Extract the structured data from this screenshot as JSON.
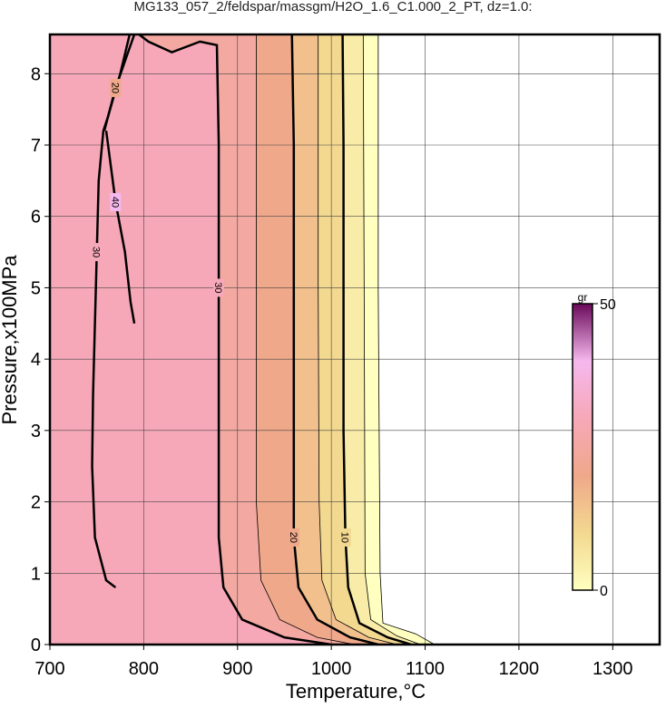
{
  "chart_data": {
    "type": "contour",
    "title": "MG133_057_2/feldspar/massgm/H2O_1.6_C1.000_2_PT, dz=1.0:",
    "x_label": "Temperature,°C",
    "y_label": "Pressure,x100MPa",
    "xlim": [
      700,
      1350
    ],
    "ylim": [
      0,
      8.55
    ],
    "xticks": [
      700,
      800,
      900,
      1000,
      1100,
      1200,
      1300
    ],
    "yticks": [
      0,
      1,
      2,
      3,
      4,
      5,
      6,
      7,
      8
    ],
    "grid": true,
    "colorbar": {
      "label": "gr",
      "clim": [
        0,
        50
      ],
      "ticks": [
        0,
        50
      ]
    },
    "colormap": [
      {
        "value": 0,
        "color": "#ffffc0"
      },
      {
        "value": 10,
        "color": "#f3d890"
      },
      {
        "value": 20,
        "color": "#efa88a"
      },
      {
        "value": 30,
        "color": "#f7a8b8"
      },
      {
        "value": 40,
        "color": "#f5b8ee"
      },
      {
        "value": 50,
        "color": "#6a0a5a"
      }
    ],
    "contours": [
      {
        "level": 0,
        "labeled": false,
        "x": [
          1110,
          1090,
          1055,
          1052,
          1050,
          1050
        ],
        "y": [
          0,
          0.15,
          0.3,
          1,
          5,
          8.55
        ]
      },
      {
        "level": 5,
        "labeled": false,
        "x": [
          1095,
          1070,
          1042,
          1036,
          1035,
          1034
        ],
        "y": [
          0,
          0.12,
          0.35,
          1,
          5,
          8.55
        ]
      },
      {
        "level": 10,
        "labeled": true,
        "x": [
          1085,
          1060,
          1030,
          1018,
          1015,
          1013,
          1013,
          1013,
          1012
        ],
        "y": [
          0,
          0.1,
          0.3,
          0.8,
          1.5,
          3,
          5,
          7,
          8.55
        ]
      },
      {
        "level": 15,
        "labeled": false,
        "x": [
          1070,
          1040,
          1005,
          990,
          987,
          986,
          986
        ],
        "y": [
          0,
          0.1,
          0.35,
          0.9,
          2,
          5,
          8.55
        ]
      },
      {
        "level": 20,
        "labeled": true,
        "x": [
          1050,
          1020,
          985,
          965,
          960,
          960,
          960,
          960,
          958
        ],
        "y": [
          0,
          0.1,
          0.35,
          0.8,
          1.5,
          3,
          5,
          7,
          8.55
        ]
      },
      {
        "level": 25,
        "labeled": false,
        "x": [
          1025,
          985,
          945,
          925,
          920,
          920,
          920
        ],
        "y": [
          0,
          0.1,
          0.35,
          0.9,
          2,
          5,
          8.55
        ]
      },
      {
        "level": 30,
        "labeled": true,
        "x": [
          1000,
          950,
          905,
          885,
          880,
          880,
          880,
          880,
          878,
          860,
          830,
          805,
          795
        ],
        "y": [
          0,
          0.1,
          0.35,
          0.8,
          1.5,
          3,
          5,
          7,
          8.4,
          8.45,
          8.3,
          8.45,
          8.55
        ]
      },
      {
        "level": 30,
        "labeled": true,
        "x": [
          770,
          760,
          748,
          745,
          746,
          748,
          750,
          752,
          757,
          762,
          775,
          785
        ],
        "y": [
          0.8,
          0.9,
          1.5,
          2.5,
          3.5,
          4.5,
          5.5,
          6.5,
          7.2,
          7.4,
          8,
          8.55
        ]
      },
      {
        "level": 20,
        "labeled": true,
        "x": [
          758,
          770,
          790
        ],
        "y": [
          7.2,
          7.8,
          8.55
        ]
      },
      {
        "level": 40,
        "labeled": true,
        "x": [
          790,
          786,
          780,
          770,
          764,
          760
        ],
        "y": [
          4.5,
          4.8,
          5.5,
          6.2,
          6.8,
          7.2
        ]
      }
    ]
  }
}
